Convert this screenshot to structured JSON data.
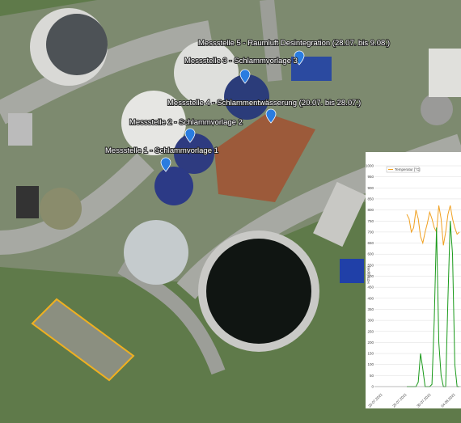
{
  "markers": [
    {
      "label": "Messstelle 5 - Raumluft Desintegration (28.07. bis 9.08.)"
    },
    {
      "label": "Messstelle 3 - Schlammvorlage 3"
    },
    {
      "label": "Messstelle 4 - Schlammentwässerung (20.07. bis 28.07.)"
    },
    {
      "label": "Messstelle 2 - Schlammvorlage 2"
    },
    {
      "label": "Messstelle 1 - Schlammvorlage 1"
    }
  ],
  "inset_chart": {
    "type": "line",
    "y_label": "H2S [ppm]",
    "ylim": [
      0,
      1000
    ],
    "yticks": [
      0,
      50,
      100,
      150,
      200,
      250,
      300,
      350,
      400,
      450,
      500,
      550,
      600,
      650,
      700,
      750,
      800,
      850,
      900,
      950,
      1000
    ],
    "x_labels": [
      "20.07.2021",
      "25.07.2021",
      "30.07.2021",
      "04.08.2021"
    ],
    "series": [
      {
        "name": "Temperatur [°C]",
        "color": "#f0a020",
        "values": [
          780,
          760,
          700,
          720,
          800,
          760,
          680,
          650,
          700,
          740,
          790,
          760,
          720,
          700,
          820,
          760,
          640,
          700,
          780,
          820,
          760,
          720,
          690,
          700
        ]
      },
      {
        "color": "#1a9a1a",
        "values": [
          0,
          0,
          0,
          0,
          0,
          20,
          150,
          80,
          0,
          0,
          0,
          10,
          300,
          720,
          200,
          50,
          0,
          0,
          400,
          750,
          600,
          100,
          0,
          0
        ]
      }
    ]
  }
}
